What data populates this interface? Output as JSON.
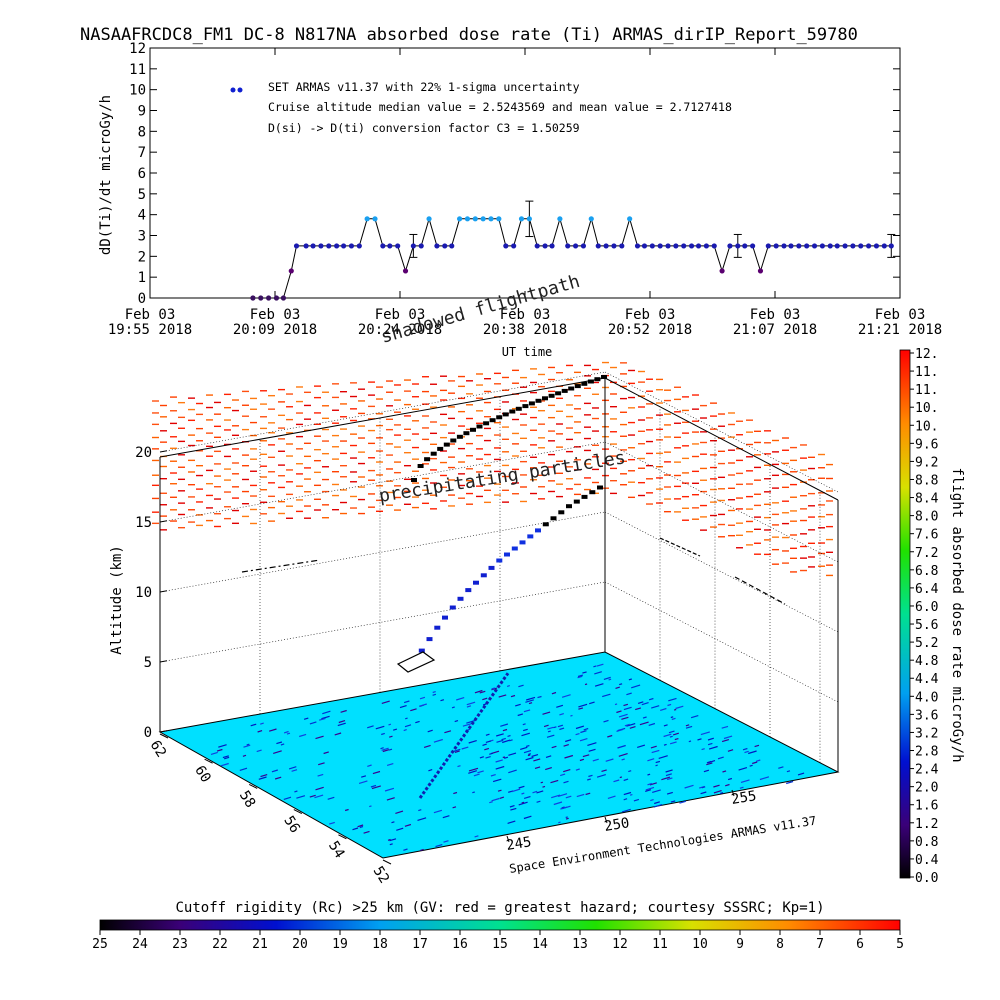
{
  "title": "NASAAFRCDC8_FM1 DC-8   N817NA absorbed dose rate (Ti) ARMAS_dirIP_Report_59780",
  "chart_data": [
    {
      "type": "scatter",
      "panel": "top",
      "title": "",
      "ylabel": "dD(Ti)/dt microGy/h",
      "xlabel": "UT time",
      "ylim": [
        0,
        12
      ],
      "yticks": [
        0,
        1,
        2,
        3,
        4,
        5,
        6,
        7,
        8,
        9,
        10,
        11,
        12
      ],
      "xticks": [
        {
          "line1": "Feb 03",
          "line2": "19:55 2018"
        },
        {
          "line1": "Feb 03",
          "line2": "20:09 2018"
        },
        {
          "line1": "Feb 03",
          "line2": "20:24 2018"
        },
        {
          "line1": "Feb 03",
          "line2": "20:38 2018"
        },
        {
          "line1": "Feb 03",
          "line2": "20:52 2018"
        },
        {
          "line1": "Feb 03",
          "line2": "21:07 2018"
        },
        {
          "line1": "Feb 03",
          "line2": "21:21 2018"
        }
      ],
      "legend": [
        "SET ARMAS v11.37 with 22% 1-sigma uncertainty",
        "Cruise altitude median value = 2.5243569 and mean value = 2.7127418",
        "D(si) -> D(ti) conversion factor C3 = 1.50259"
      ],
      "legend_position": "top-left",
      "series": [
        {
          "name": "SET ARMAS v11.37 with 22% 1-sigma uncertainty",
          "x_minutes_after_19_55": [
            11.8,
            12.7,
            13.6,
            14.5,
            15.3,
            16.2,
            16.8,
            17.9,
            18.7,
            19.6,
            20.5,
            21.4,
            22.2,
            23.1,
            24.0,
            24.9,
            25.8,
            26.7,
            27.5,
            28.4,
            29.3,
            30.2,
            31.1,
            32.0,
            32.9,
            33.8,
            34.6,
            35.5,
            36.4,
            37.3,
            38.2,
            39.1,
            40.0,
            40.8,
            41.7,
            42.6,
            43.5,
            44.4,
            45.3,
            46.1,
            47.0,
            47.9,
            48.8,
            49.7,
            50.6,
            51.4,
            52.3,
            53.2,
            54.1,
            55.0,
            55.9,
            56.7,
            57.6,
            58.5,
            59.4,
            60.3,
            61.2,
            62.1,
            62.9,
            63.8,
            64.7,
            65.6,
            66.5,
            67.4,
            68.2,
            69.1,
            70.0,
            70.9,
            71.8,
            72.7,
            73.5,
            74.4,
            75.3,
            76.2,
            77.1,
            78.0,
            78.8,
            79.7,
            80.6,
            81.5,
            82.4,
            83.3,
            84.2,
            85.0
          ],
          "values": [
            0,
            0,
            0,
            0,
            0,
            1.3,
            2.5,
            2.5,
            2.5,
            2.5,
            2.5,
            2.5,
            2.5,
            2.5,
            2.5,
            3.8,
            3.8,
            2.5,
            2.5,
            2.5,
            1.3,
            2.5,
            2.5,
            3.8,
            2.5,
            2.5,
            2.5,
            3.8,
            3.8,
            3.8,
            3.8,
            3.8,
            3.8,
            2.5,
            2.5,
            3.8,
            3.8,
            2.5,
            2.5,
            2.5,
            3.8,
            2.5,
            2.5,
            2.5,
            3.8,
            2.5,
            2.5,
            2.5,
            2.5,
            3.8,
            2.5,
            2.5,
            2.5,
            2.5,
            2.5,
            2.5,
            2.5,
            2.5,
            2.5,
            2.5,
            2.5,
            1.3,
            2.5,
            2.5,
            2.5,
            2.5,
            1.3,
            2.5,
            2.5,
            2.5,
            2.5,
            2.5,
            2.5,
            2.5,
            2.5,
            2.5,
            2.5,
            2.5,
            2.5,
            2.5,
            2.5,
            2.5,
            2.5,
            2.5
          ],
          "error_bar_indices": [
            21,
            36,
            63,
            83
          ],
          "error_bar_halfwidths": [
            0.55,
            0.85,
            0.55,
            0.55
          ]
        }
      ]
    },
    {
      "type": "scatter",
      "panel": "3d",
      "zlabel": "Altitude (km)",
      "zticks": [
        0,
        5,
        10,
        15,
        20
      ],
      "lat_ticks": [
        "62",
        "60",
        "58",
        "56",
        "54",
        "52"
      ],
      "lon_ticks": [
        "245",
        "250",
        "255"
      ],
      "annotations": [
        "precipitating particles",
        "shadowed flightpath"
      ],
      "credit": "Space Environment Technologies ARMAS v11.37",
      "flight_altitude_km": [
        5.0,
        5.6,
        6.2,
        6.8,
        7.3,
        7.8,
        8.2,
        8.6,
        8.9,
        9.2,
        9.5,
        9.8,
        10.0,
        10.2,
        10.4,
        10.6,
        10.8,
        11.0,
        11.2,
        11.4,
        11.6,
        11.7,
        11.8,
        11.9,
        12.0
      ]
    }
  ],
  "colorbar_right": {
    "label": "flight absorbed dose rate microGy/h",
    "ticks": [
      "0.0",
      "0.4",
      "0.8",
      "1.2",
      "1.6",
      "2.0",
      "2.4",
      "2.8",
      "3.2",
      "3.6",
      "4.0",
      "4.4",
      "4.8",
      "5.2",
      "5.6",
      "6.0",
      "6.4",
      "6.8",
      "7.2",
      "7.6",
      "8.0",
      "8.4",
      "8.8",
      "9.2",
      "9.6",
      "10.",
      "10.",
      "11.",
      "11.",
      "12."
    ]
  },
  "colorbar_bottom": {
    "label": "Cutoff rigidity (Rc) >25 km (GV: red = greatest hazard; courtesy SSSRC; Kp=1)",
    "ticks": [
      "25",
      "24",
      "23",
      "22",
      "21",
      "20",
      "19",
      "18",
      "17",
      "16",
      "15",
      "14",
      "13",
      "12",
      "11",
      "10",
      "9",
      "8",
      "7",
      "6",
      "5"
    ]
  }
}
